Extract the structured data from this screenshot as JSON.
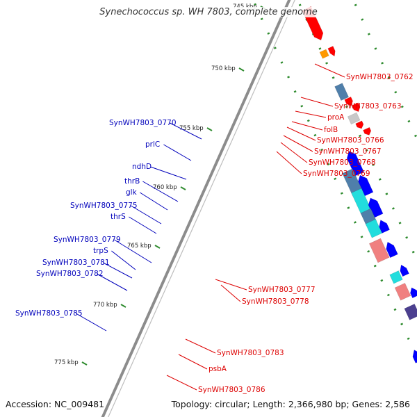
{
  "title": "Synechococcus sp. WH 7803, complete genome",
  "footer": {
    "accession": "Accession: NC_009481",
    "summary": "Topology: circular; Length: 2,366,980 bp; Genes: 2,586"
  },
  "colors": {
    "backbone": "#8c8c8c",
    "forward_gene": "#ff0000",
    "reverse_gene": "#0000ff",
    "label_forward": "#dd0000",
    "label_reverse": "#0000bb",
    "tick_green": "#2e8b2e",
    "cyan": "#22dddd",
    "steelblue": "#4f7faa",
    "pink": "#f08080",
    "orange": "#ff9900",
    "grey": "#c8c8c8",
    "purple": "#4b3f8f"
  },
  "ticks": [
    "745 kbp",
    "750 kbp",
    "755 kbp",
    "760 kbp",
    "765 kbp",
    "770 kbp",
    "775 kbp"
  ],
  "labels_reverse": [
    "SynWH7803_0770",
    "prlC",
    "ndhD",
    "thrB",
    "glk",
    "SynWH7803_0775",
    "thrS",
    "SynWH7803_0779",
    "trpS",
    "SynWH7803_0781",
    "SynWH7803_0782",
    "SynWH7803_0785"
  ],
  "labels_forward": [
    "SynWH7803_0762",
    "SynWH7803_0763",
    "proA",
    "folB",
    "SynWH7803_0766",
    "SynWH7803_0767",
    "SynWH7803_0768",
    "SynWH7803_0769",
    "SynWH7803_0777",
    "SynWH7803_0778",
    "SynWH7803_0783",
    "psbA",
    "SynWH7803_0786"
  ]
}
